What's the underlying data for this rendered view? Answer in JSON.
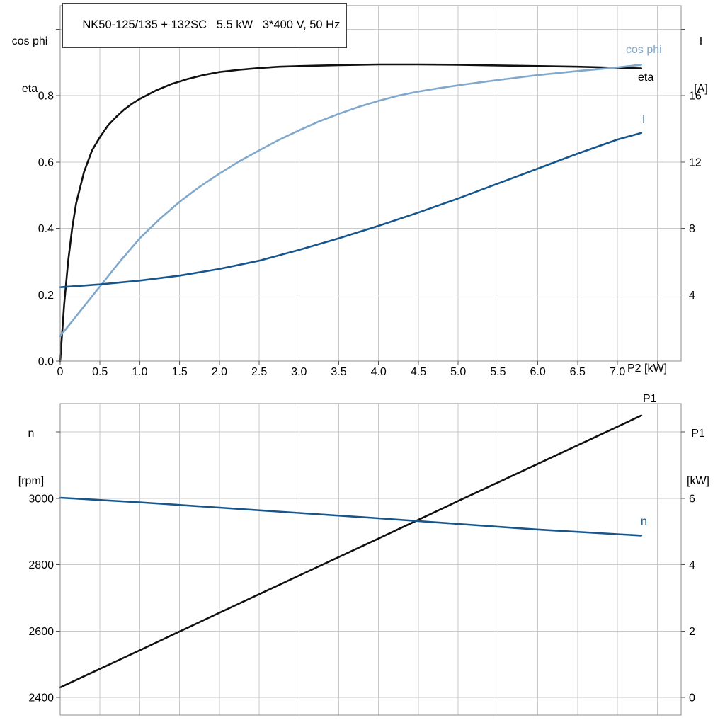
{
  "colors": {
    "black": "#111111",
    "dark_blue": "#17568c",
    "light_blue": "#7fa8cc",
    "grid": "#c9c9c9",
    "border": "#8c8c8c",
    "background": "#ffffff",
    "text": "#000000"
  },
  "chart_data": [
    {
      "type": "line",
      "name": "motor-electrical-chart",
      "title": "NK50-125/135 + 132SC   5.5 kW   3*400 V, 50 Hz",
      "xlabel": "P2 [kW]",
      "x_range": [
        0,
        7.8
      ],
      "x_tick_values": [
        0,
        0.5,
        1,
        1.5,
        2,
        2.5,
        3,
        3.5,
        4,
        4.5,
        5,
        5.5,
        6,
        6.5,
        7
      ],
      "x_tick_labels": [
        "0",
        "0.5",
        "1.0",
        "1.5",
        "2.0",
        "2.5",
        "3.0",
        "3.5",
        "4.0",
        "4.5",
        "5.0",
        "5.5",
        "6.0",
        "6.5",
        "7.0"
      ],
      "grid_x_values": [
        0.5,
        1,
        1.5,
        2,
        2.5,
        3,
        3.5,
        4,
        4.5,
        5,
        5.5,
        6,
        6.5,
        7,
        7.5
      ],
      "show_x_ticks": true,
      "legend_position": "curve-end-labels",
      "grid": "on",
      "left_axis": {
        "title_lines": [
          "cos phi",
          "eta"
        ],
        "range": [
          0,
          1.071
        ],
        "tick_values": [
          0,
          0.2,
          0.4,
          0.6,
          0.8
        ],
        "tick_labels": [
          "0.0",
          "0.2",
          "0.4",
          "0.6",
          "0.8"
        ],
        "grid_values": [
          0.2,
          0.4,
          0.6,
          0.8,
          1.0
        ],
        "tick_marks": [
          0,
          0.2,
          0.4,
          0.6,
          0.8,
          1.0
        ]
      },
      "right_axis": {
        "title_lines": [
          "I",
          "[A]"
        ],
        "range": [
          0,
          21.42
        ],
        "tick_values": [
          4,
          8,
          12,
          16
        ],
        "tick_labels": [
          "4",
          "8",
          "12",
          "16"
        ],
        "tick_marks": [
          4,
          8,
          12,
          16,
          20
        ]
      },
      "series": [
        {
          "name": "eta",
          "label": "eta",
          "axis": "left",
          "color_key": "black",
          "points": [
            [
              0,
              0
            ],
            [
              0.05,
              0.17
            ],
            [
              0.1,
              0.3
            ],
            [
              0.15,
              0.4
            ],
            [
              0.2,
              0.475
            ],
            [
              0.3,
              0.57
            ],
            [
              0.4,
              0.635
            ],
            [
              0.5,
              0.675
            ],
            [
              0.6,
              0.71
            ],
            [
              0.7,
              0.735
            ],
            [
              0.8,
              0.757
            ],
            [
              0.9,
              0.775
            ],
            [
              1,
              0.79
            ],
            [
              1.2,
              0.815
            ],
            [
              1.4,
              0.835
            ],
            [
              1.6,
              0.85
            ],
            [
              1.8,
              0.862
            ],
            [
              2,
              0.871
            ],
            [
              2.25,
              0.878
            ],
            [
              2.5,
              0.883
            ],
            [
              2.75,
              0.887
            ],
            [
              3,
              0.889
            ],
            [
              3.5,
              0.892
            ],
            [
              4,
              0.894
            ],
            [
              4.5,
              0.894
            ],
            [
              5,
              0.893
            ],
            [
              5.5,
              0.891
            ],
            [
              6,
              0.889
            ],
            [
              6.5,
              0.887
            ],
            [
              7,
              0.884
            ],
            [
              7.3,
              0.882
            ]
          ]
        },
        {
          "name": "cos-phi",
          "label": "cos phi",
          "axis": "left",
          "color_key": "light_blue",
          "points": [
            [
              0,
              0.075
            ],
            [
              0.25,
              0.15
            ],
            [
              0.5,
              0.225
            ],
            [
              0.75,
              0.3
            ],
            [
              1,
              0.37
            ],
            [
              1.25,
              0.428
            ],
            [
              1.5,
              0.48
            ],
            [
              1.75,
              0.525
            ],
            [
              2,
              0.565
            ],
            [
              2.25,
              0.602
            ],
            [
              2.5,
              0.635
            ],
            [
              2.75,
              0.667
            ],
            [
              3,
              0.695
            ],
            [
              3.25,
              0.722
            ],
            [
              3.5,
              0.745
            ],
            [
              3.75,
              0.766
            ],
            [
              4,
              0.784
            ],
            [
              4.25,
              0.8
            ],
            [
              4.5,
              0.812
            ],
            [
              4.75,
              0.822
            ],
            [
              5,
              0.831
            ],
            [
              5.25,
              0.839
            ],
            [
              5.5,
              0.847
            ],
            [
              6,
              0.862
            ],
            [
              6.5,
              0.874
            ],
            [
              7,
              0.885
            ],
            [
              7.3,
              0.893
            ]
          ]
        },
        {
          "name": "current",
          "label": "I",
          "axis": "right",
          "color_key": "dark_blue",
          "points": [
            [
              0,
              4.45
            ],
            [
              0.5,
              4.62
            ],
            [
              1,
              4.85
            ],
            [
              1.5,
              5.15
            ],
            [
              2,
              5.55
            ],
            [
              2.5,
              6.05
            ],
            [
              3,
              6.7
            ],
            [
              3.5,
              7.4
            ],
            [
              4,
              8.15
            ],
            [
              4.5,
              8.95
            ],
            [
              5,
              9.8
            ],
            [
              5.5,
              10.7
            ],
            [
              6,
              11.6
            ],
            [
              6.5,
              12.5
            ],
            [
              7,
              13.35
            ],
            [
              7.3,
              13.75
            ]
          ]
        }
      ]
    },
    {
      "type": "line",
      "name": "speed-power-chart",
      "title": "",
      "xlabel": "",
      "x_range": [
        0,
        7.8
      ],
      "x_tick_values": [],
      "x_tick_labels": [],
      "grid_x_values": [
        0.5,
        1,
        1.5,
        2,
        2.5,
        3,
        3.5,
        4,
        4.5,
        5,
        5.5,
        6,
        6.5,
        7,
        7.5
      ],
      "show_x_ticks": false,
      "legend_position": "curve-end-labels",
      "grid": "on",
      "left_axis": {
        "title_lines": [
          "n",
          "[rpm]"
        ],
        "range": [
          2346.6,
          3285.8
        ],
        "tick_values": [
          2400,
          2600,
          2800,
          3000
        ],
        "tick_labels": [
          "2400",
          "2600",
          "2800",
          "3000"
        ],
        "grid_values": [
          2400,
          2600,
          2800,
          3000,
          3200
        ],
        "tick_marks": [
          2400,
          2600,
          2800,
          3000,
          3200
        ]
      },
      "right_axis": {
        "title_lines": [
          "P1",
          "[kW]"
        ],
        "range": [
          -0.534,
          8.858
        ],
        "tick_values": [
          0,
          2,
          4,
          6
        ],
        "tick_labels": [
          "0",
          "2",
          "4",
          "6"
        ],
        "tick_marks": [
          0,
          2,
          4,
          6,
          8
        ]
      },
      "series": [
        {
          "name": "p1",
          "label": "P1",
          "axis": "right",
          "color_key": "black",
          "points": [
            [
              0,
              0.3
            ],
            [
              1,
              1.42
            ],
            [
              2,
              2.55
            ],
            [
              3,
              3.67
            ],
            [
              4,
              4.79
            ],
            [
              5,
              5.92
            ],
            [
              6,
              7.04
            ],
            [
              7,
              8.16
            ],
            [
              7.3,
              8.5
            ]
          ]
        },
        {
          "name": "speed",
          "label": "n",
          "axis": "left",
          "color_key": "dark_blue",
          "points": [
            [
              0,
              3002
            ],
            [
              1,
              2988
            ],
            [
              2,
              2972
            ],
            [
              3,
              2956
            ],
            [
              4,
              2940
            ],
            [
              5,
              2923
            ],
            [
              6,
              2906
            ],
            [
              7,
              2892
            ],
            [
              7.3,
              2888
            ]
          ]
        }
      ]
    }
  ]
}
